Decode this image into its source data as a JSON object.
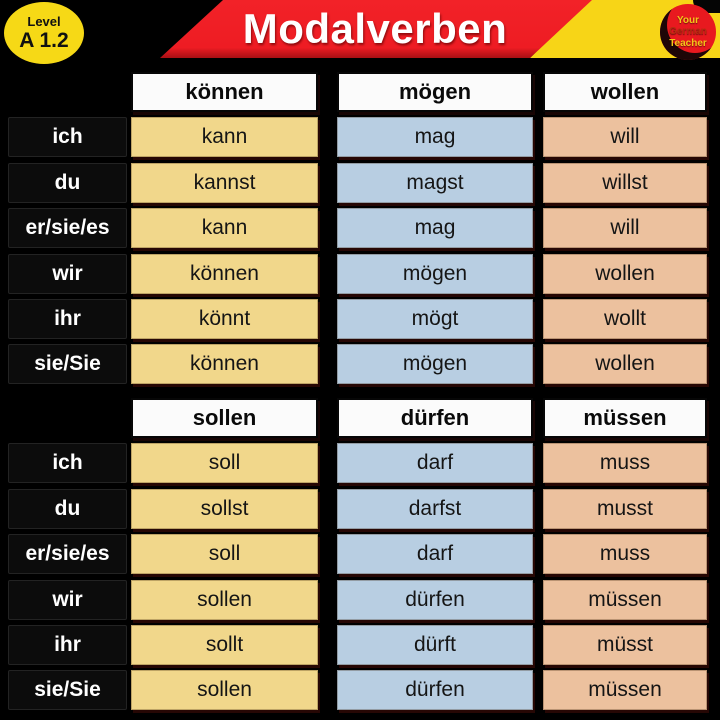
{
  "badge": {
    "line1": "Level",
    "line2": "A 1.2"
  },
  "banner": {
    "title": "Modalverben"
  },
  "logo": {
    "line1": "Your",
    "line2": "German",
    "line3": "Teacher"
  },
  "pronouns": [
    "ich",
    "du",
    "er/sie/es",
    "wir",
    "ihr",
    "sie/Sie"
  ],
  "tables": [
    {
      "headers": [
        "können",
        "mögen",
        "wollen"
      ],
      "rows": [
        [
          "kann",
          "mag",
          "will"
        ],
        [
          "kannst",
          "magst",
          "willst"
        ],
        [
          "kann",
          "mag",
          "will"
        ],
        [
          "können",
          "mögen",
          "wollen"
        ],
        [
          "könnt",
          "mögt",
          "wollt"
        ],
        [
          "können",
          "mögen",
          "wollen"
        ]
      ]
    },
    {
      "headers": [
        "sollen",
        "dürfen",
        "müssen"
      ],
      "rows": [
        [
          "soll",
          "darf",
          "muss"
        ],
        [
          "sollst",
          "darfst",
          "musst"
        ],
        [
          "soll",
          "darf",
          "muss"
        ],
        [
          "sollen",
          "dürfen",
          "müssen"
        ],
        [
          "sollt",
          "dürft",
          "müsst"
        ],
        [
          "sollen",
          "dürfen",
          "müssen"
        ]
      ]
    }
  ],
  "colors": {
    "background": "#000000",
    "banner_red": "#ee1c23",
    "header_yellow": "#f7d517",
    "badge_yellow": "#f6d916",
    "logo_red": "#e8191f",
    "header_cell_white": "#fbfbfb",
    "column_colors": [
      "#f1d78b",
      "#b8cee2",
      "#ecc19e"
    ]
  },
  "chart_data": [
    {
      "type": "table",
      "title": "Modalverben",
      "columns": [
        "",
        "können",
        "mögen",
        "wollen"
      ],
      "rows": [
        [
          "ich",
          "kann",
          "mag",
          "will"
        ],
        [
          "du",
          "kannst",
          "magst",
          "willst"
        ],
        [
          "er/sie/es",
          "kann",
          "mag",
          "will"
        ],
        [
          "wir",
          "können",
          "mögen",
          "wollen"
        ],
        [
          "ihr",
          "könnt",
          "mögt",
          "wollt"
        ],
        [
          "sie/Sie",
          "können",
          "mögen",
          "wollen"
        ]
      ]
    },
    {
      "type": "table",
      "title": "Modalverben",
      "columns": [
        "",
        "sollen",
        "dürfen",
        "müssen"
      ],
      "rows": [
        [
          "ich",
          "soll",
          "darf",
          "muss"
        ],
        [
          "du",
          "sollst",
          "darfst",
          "musst"
        ],
        [
          "er/sie/es",
          "soll",
          "darf",
          "muss"
        ],
        [
          "wir",
          "sollen",
          "dürfen",
          "müssen"
        ],
        [
          "ihr",
          "sollt",
          "dürft",
          "müsst"
        ],
        [
          "sie/Sie",
          "sollen",
          "dürfen",
          "müssen"
        ]
      ]
    }
  ]
}
